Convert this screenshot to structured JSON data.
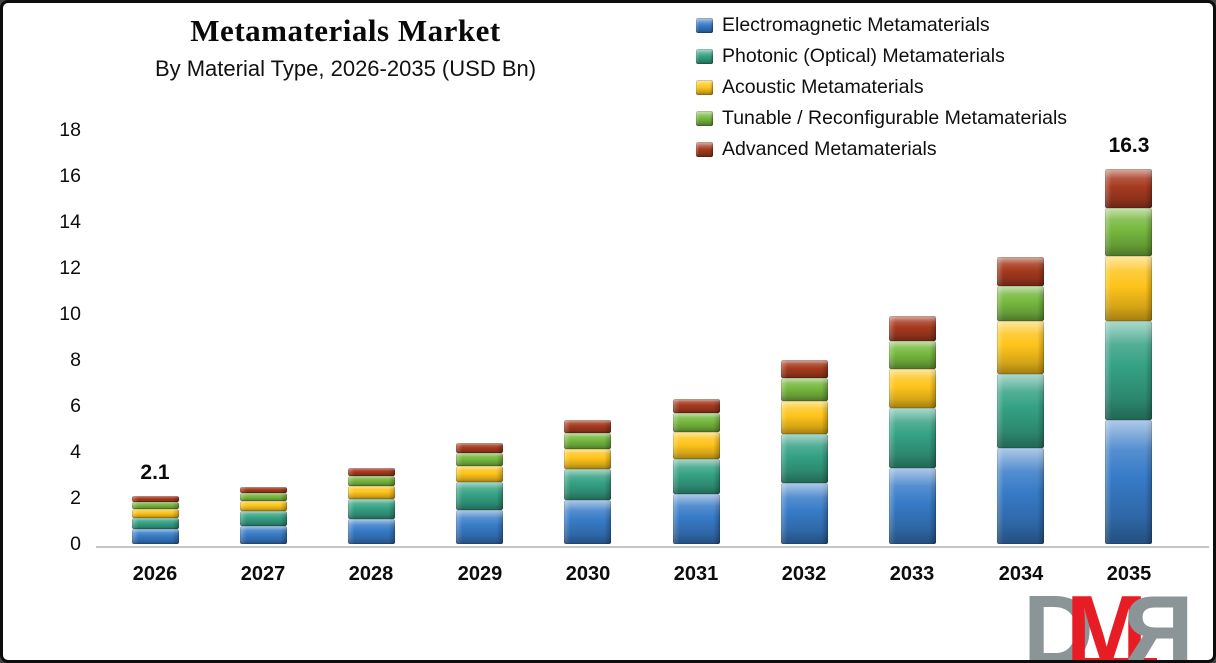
{
  "header": {
    "title": "Metamaterials Market",
    "subtitle": "By Material Type, 2026-2035 (USD Bn)"
  },
  "chart_data": {
    "type": "bar",
    "stacked": true,
    "title": "Metamaterials Market",
    "subtitle": "By Material Type, 2026-2035 (USD Bn)",
    "unit": "USD Bn",
    "xlabel": "",
    "ylabel": "",
    "ylim": [
      0,
      18
    ],
    "yticks": [
      0,
      2,
      4,
      6,
      8,
      10,
      12,
      14,
      16,
      18
    ],
    "grid": false,
    "legend_position": "top-right",
    "categories": [
      "2026",
      "2027",
      "2028",
      "2029",
      "2030",
      "2031",
      "2032",
      "2033",
      "2034",
      "2035"
    ],
    "series": [
      {
        "name": "Electromagnetic Metamaterials",
        "color": "#377bc7",
        "values": [
          0.65,
          0.8,
          1.1,
          1.5,
          1.9,
          2.15,
          2.65,
          3.3,
          4.2,
          5.4
        ]
      },
      {
        "name": "Photonic (Optical) Metamaterials",
        "color": "#34a183",
        "values": [
          0.5,
          0.65,
          0.85,
          1.2,
          1.35,
          1.55,
          2.15,
          2.6,
          3.2,
          4.3
        ]
      },
      {
        "name": "Acoustic Metamaterials",
        "color": "#fec41a",
        "values": [
          0.4,
          0.45,
          0.55,
          0.7,
          0.9,
          1.15,
          1.4,
          1.7,
          2.3,
          2.8
        ]
      },
      {
        "name": "Tunable / Reconfigurable Metamaterials",
        "color": "#76b83e",
        "values": [
          0.3,
          0.35,
          0.45,
          0.55,
          0.7,
          0.85,
          1.0,
          1.2,
          1.55,
          2.1
        ]
      },
      {
        "name": "Advanced Metamaterials",
        "color": "#a63a1f",
        "values": [
          0.25,
          0.25,
          0.35,
          0.45,
          0.55,
          0.6,
          0.8,
          1.1,
          1.25,
          1.7
        ]
      }
    ],
    "totals": [
      2.1,
      2.5,
      3.3,
      4.4,
      5.4,
      6.3,
      8.0,
      9.9,
      12.5,
      16.3
    ],
    "value_labels": {
      "2026": "2.1",
      "2035": "16.3"
    }
  },
  "logo": {
    "d": "D",
    "m": "M",
    "r": "R"
  }
}
